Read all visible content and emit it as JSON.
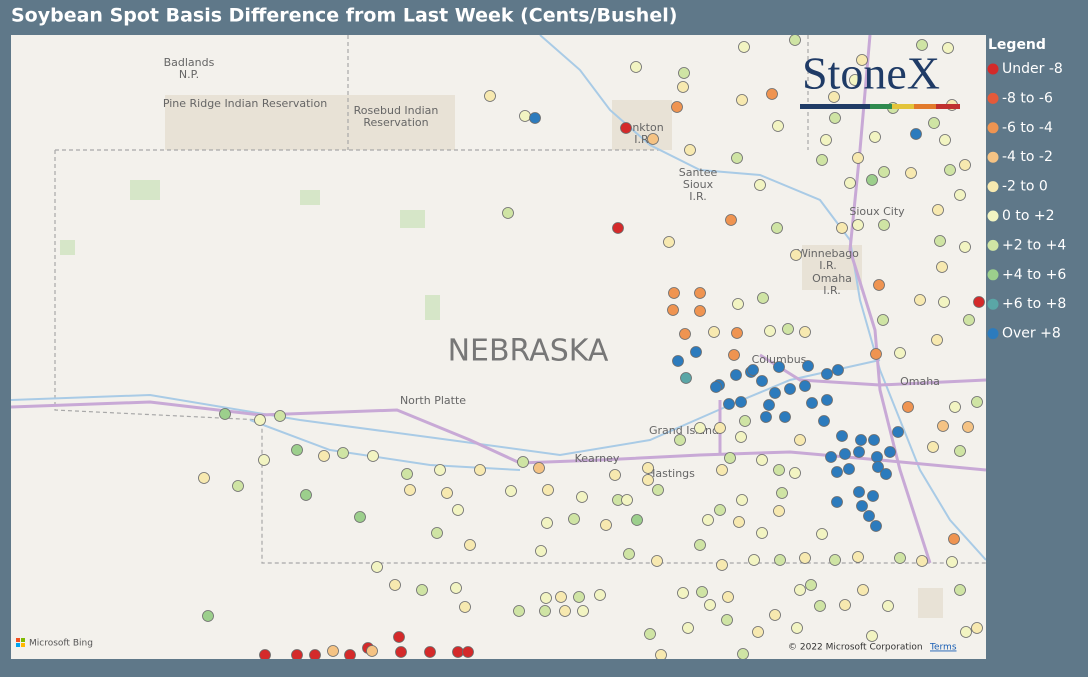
{
  "header": {
    "title": "Soybean Spot Basis Difference from Last Week (Cents/Bushel)"
  },
  "legend": {
    "title": "Legend",
    "items": [
      {
        "label": "Under -8",
        "color": "#d42a2a"
      },
      {
        "label": "-8 to -6",
        "color": "#e55a3a"
      },
      {
        "label": "-6 to -4",
        "color": "#ef9451"
      },
      {
        "label": "-4 to -2",
        "color": "#f5c384"
      },
      {
        "label": "-2 to 0",
        "color": "#f7e9b0"
      },
      {
        "label": "0 to +2",
        "color": "#f2f4c2"
      },
      {
        "label": "+2 to +4",
        "color": "#cfe4a4"
      },
      {
        "label": "+4 to +6",
        "color": "#9ccf8c"
      },
      {
        "label": "+6 to +8",
        "color": "#5aa6a6"
      },
      {
        "label": "Over +8",
        "color": "#2c7bbd"
      }
    ]
  },
  "map": {
    "labels": {
      "badlands": "Badlands",
      "badlands_np": "N.P.",
      "pine_ridge": "Pine Ridge Indian Reservation",
      "rosebud1": "Rosebud Indian",
      "rosebud2": "Reservation",
      "yankton": "nkton",
      "yankton_ir": "I.R.",
      "santee1": "Santee",
      "santee2": "Sioux",
      "santee3": "I.R.",
      "sioux_city": "Sioux City",
      "winnebago1": "Winnebago",
      "winnebago2": "I.R.",
      "omaha_ir": "Omaha",
      "omaha_ir2": "I.R.",
      "state": "NEBRASKA",
      "columbus": "Columbus",
      "omaha": "Omaha",
      "north_platte": "North Platte",
      "grand_island": "Grand Island",
      "kearney": "Kearney",
      "hastings": "Hastings"
    },
    "logo": "StoneX",
    "bing": "Microsoft Bing",
    "copyright": "© 2022 Microsoft Corporation",
    "terms": "Terms"
  }
}
